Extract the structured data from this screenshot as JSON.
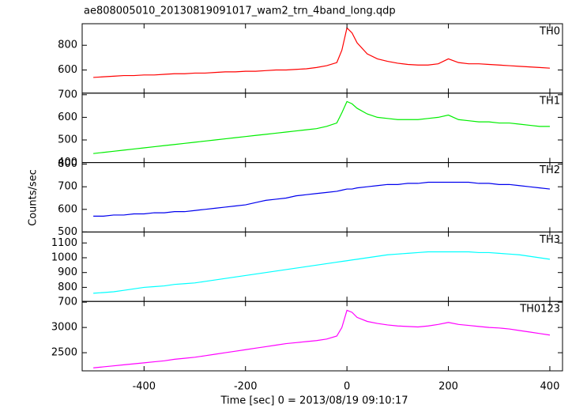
{
  "chart_data": {
    "type": "line",
    "title": "ae808005010_20130819091017_wam2_trn_4band_long.qdp",
    "xlabel": "Time [sec] 0 = 2013/08/19 09:10:17",
    "ylabel": "Counts/sec",
    "xlim": [
      -522,
      425
    ],
    "xticks": [
      -400,
      -200,
      0,
      200,
      400
    ],
    "x": [
      -500,
      -480,
      -460,
      -440,
      -420,
      -400,
      -380,
      -360,
      -340,
      -320,
      -300,
      -280,
      -260,
      -240,
      -220,
      -200,
      -180,
      -160,
      -140,
      -120,
      -100,
      -80,
      -60,
      -40,
      -20,
      -10,
      0,
      10,
      20,
      40,
      60,
      80,
      100,
      120,
      140,
      160,
      180,
      200,
      220,
      240,
      260,
      280,
      300,
      320,
      340,
      360,
      380,
      400
    ],
    "series": [
      {
        "name": "TH0",
        "color": "#ff0000",
        "ylim": [
          413,
          974
        ],
        "yticks": [
          600,
          800
        ],
        "values": [
          540,
          545,
          550,
          555,
          555,
          560,
          560,
          565,
          570,
          570,
          575,
          575,
          580,
          585,
          585,
          590,
          590,
          595,
          600,
          600,
          605,
          610,
          620,
          635,
          660,
          760,
          940,
          900,
          820,
          730,
          690,
          670,
          655,
          645,
          640,
          640,
          650,
          690,
          660,
          650,
          650,
          645,
          640,
          635,
          630,
          625,
          620,
          615
        ]
      },
      {
        "name": "TH1",
        "color": "#00ee00",
        "ylim": [
          400,
          707
        ],
        "yticks": [
          400,
          500,
          600,
          700
        ],
        "values": [
          440,
          445,
          450,
          455,
          460,
          465,
          470,
          475,
          480,
          485,
          490,
          495,
          500,
          505,
          510,
          515,
          520,
          525,
          530,
          535,
          540,
          545,
          550,
          560,
          575,
          620,
          670,
          660,
          640,
          615,
          600,
          595,
          590,
          590,
          590,
          595,
          600,
          610,
          590,
          585,
          580,
          580,
          575,
          575,
          570,
          565,
          560,
          560
        ]
      },
      {
        "name": "TH2",
        "color": "#0000ee",
        "ylim": [
          500,
          807
        ],
        "yticks": [
          500,
          600,
          700,
          800
        ],
        "values": [
          570,
          570,
          575,
          575,
          580,
          580,
          585,
          585,
          590,
          590,
          595,
          600,
          605,
          610,
          615,
          620,
          630,
          640,
          645,
          650,
          660,
          665,
          670,
          675,
          680,
          685,
          690,
          690,
          695,
          700,
          705,
          710,
          710,
          715,
          715,
          720,
          720,
          720,
          720,
          720,
          715,
          715,
          710,
          710,
          705,
          700,
          695,
          690
        ]
      },
      {
        "name": "TH3",
        "color": "#00ffff",
        "ylim": [
          705,
          1174
        ],
        "yticks": [
          700,
          800,
          900,
          1000,
          1100
        ],
        "values": [
          760,
          765,
          770,
          780,
          790,
          800,
          805,
          810,
          820,
          825,
          830,
          840,
          850,
          860,
          870,
          880,
          890,
          900,
          910,
          920,
          930,
          940,
          950,
          960,
          970,
          975,
          980,
          985,
          990,
          1000,
          1010,
          1020,
          1025,
          1030,
          1035,
          1040,
          1040,
          1040,
          1040,
          1040,
          1035,
          1035,
          1030,
          1025,
          1020,
          1010,
          1000,
          990
        ]
      },
      {
        "name": "TH0123",
        "color": "#ff00ff",
        "ylim": [
          2141,
          3516
        ],
        "yticks": [
          2500,
          3000
        ],
        "values": [
          2200,
          2220,
          2240,
          2260,
          2280,
          2300,
          2320,
          2340,
          2370,
          2390,
          2410,
          2440,
          2470,
          2500,
          2530,
          2560,
          2590,
          2620,
          2650,
          2680,
          2700,
          2720,
          2740,
          2770,
          2830,
          3000,
          3340,
          3300,
          3200,
          3120,
          3080,
          3050,
          3030,
          3020,
          3010,
          3030,
          3060,
          3100,
          3060,
          3040,
          3020,
          3000,
          2990,
          2970,
          2940,
          2910,
          2880,
          2850
        ]
      }
    ]
  }
}
